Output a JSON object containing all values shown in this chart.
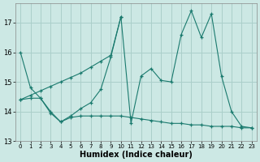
{
  "xlabel": "Humidex (Indice chaleur)",
  "bg_color": "#cce8e4",
  "line_color": "#1a7a6e",
  "grid_color": "#aacfca",
  "xlim": [
    -0.5,
    23.5
  ],
  "ylim": [
    13.0,
    17.65
  ],
  "yticks": [
    13,
    14,
    15,
    16,
    17
  ],
  "xticks": [
    0,
    1,
    2,
    3,
    4,
    5,
    6,
    7,
    8,
    9,
    10,
    11,
    12,
    13,
    14,
    15,
    16,
    17,
    18,
    19,
    20,
    21,
    22,
    23
  ],
  "series1_x": [
    0,
    1,
    2,
    3,
    4,
    5,
    6,
    7,
    8,
    9,
    10,
    11,
    12,
    13,
    14,
    15,
    16,
    17,
    18,
    19,
    20,
    21,
    22,
    23
  ],
  "series1_y": [
    16.0,
    14.8,
    14.45,
    14.0,
    13.65,
    13.85,
    14.1,
    14.3,
    14.75,
    15.85,
    17.2,
    13.6,
    15.2,
    15.45,
    15.05,
    15.0,
    16.6,
    17.4,
    16.5,
    17.3,
    15.2,
    14.0,
    13.5,
    13.45
  ],
  "series2_x": [
    0,
    1,
    2,
    3,
    4,
    5,
    6,
    7,
    8,
    9,
    10
  ],
  "series2_y": [
    14.4,
    14.55,
    14.7,
    14.85,
    15.0,
    15.15,
    15.3,
    15.5,
    15.7,
    15.9,
    17.2
  ],
  "series3_x": [
    0,
    1,
    2,
    3,
    4,
    5,
    6,
    7,
    8,
    9,
    10,
    11,
    12,
    13,
    14,
    15,
    16,
    17,
    18,
    19,
    20,
    21,
    22,
    23
  ],
  "series3_y": [
    14.4,
    14.45,
    14.45,
    13.95,
    13.65,
    13.8,
    13.85,
    13.85,
    13.85,
    13.85,
    13.85,
    13.8,
    13.75,
    13.7,
    13.65,
    13.6,
    13.6,
    13.55,
    13.55,
    13.5,
    13.5,
    13.5,
    13.45,
    13.45
  ]
}
